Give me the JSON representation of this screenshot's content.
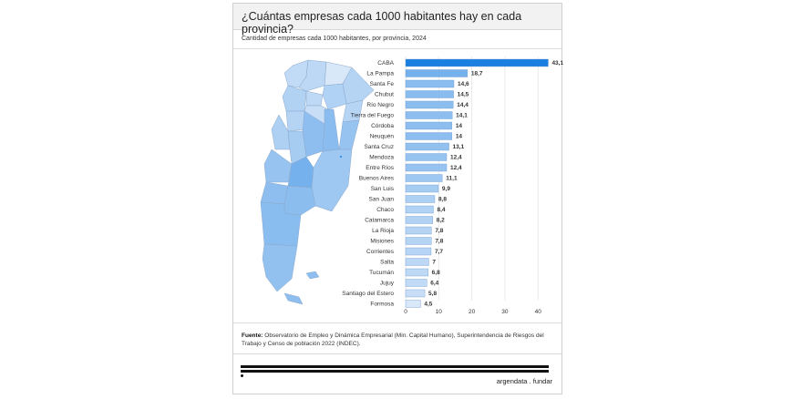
{
  "title": "¿Cuántas empresas cada 1000 habitantes hay en cada provincia?",
  "subtitle": "Cantidad de empresas cada 1000 habitantes, por provincia, 2024",
  "source_label": "Fuente:",
  "source_text": " Observatorio de Empleo y Dinámica Empresarial (Min. Capital Humano), Superintendencia de Riesgos del Trabajo y Censo de población 2022 (INDEC).",
  "logo": "argendata . fundar",
  "colors": {
    "max": "#1a7fe0",
    "min": "#e8f0fb",
    "stroke": "#7a9cc6"
  },
  "chart_data": {
    "type": "bar",
    "orientation": "horizontal",
    "categories": [
      "CABA",
      "La Pampa",
      "Santa Fe",
      "Chubut",
      "Río Negro",
      "Tierra del Fuego",
      "Córdoba",
      "Neuquén",
      "Santa Cruz",
      "Mendoza",
      "Entre Ríos",
      "Buenos Aires",
      "San Luis",
      "San Juan",
      "Chaco",
      "Catamarca",
      "La Rioja",
      "Misiones",
      "Corrientes",
      "Salta",
      "Tucumán",
      "Jujuy",
      "Santiago del Estero",
      "Formosa"
    ],
    "values": [
      43.1,
      18.7,
      14.6,
      14.5,
      14.4,
      14.1,
      14,
      14,
      13.1,
      12.4,
      12.4,
      11.1,
      9.9,
      8.8,
      8.4,
      8.2,
      7.8,
      7.8,
      7.7,
      7,
      6.8,
      6.4,
      5.8,
      4.5
    ],
    "value_labels": [
      "43,1",
      "18,7",
      "14,6",
      "14,5",
      "14,4",
      "14,1",
      "14",
      "14",
      "13,1",
      "12,4",
      "12,4",
      "11,1",
      "9,9",
      "8,8",
      "8,4",
      "8,2",
      "7,8",
      "7,8",
      "7,7",
      "7",
      "6,8",
      "6,4",
      "5,8",
      "4,5"
    ],
    "xticks": [
      "0",
      "10",
      "20",
      "30",
      "40"
    ],
    "xlim": [
      0,
      43.1
    ],
    "grid": true,
    "title": "",
    "xlabel": "",
    "ylabel": ""
  }
}
